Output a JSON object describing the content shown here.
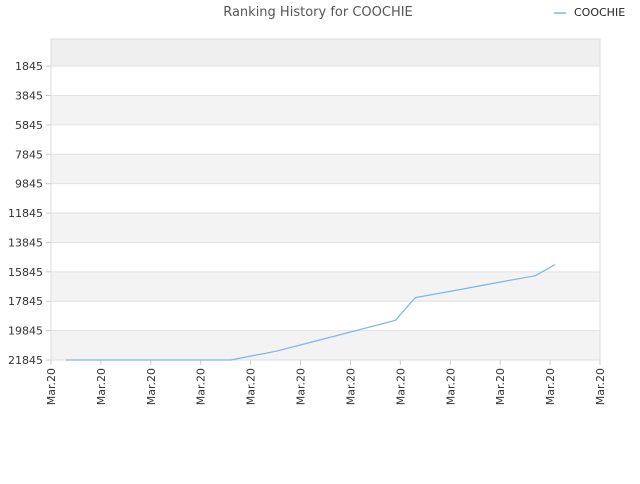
{
  "chart_data": {
    "type": "line",
    "title": "Ranking History for COOCHIE",
    "xlabel": "",
    "ylabel": "",
    "y_inverted": true,
    "ylim": [
      0,
      21845
    ],
    "yticks": [
      1845,
      3845,
      5845,
      7845,
      9845,
      11845,
      13845,
      15845,
      17845,
      19845,
      21845
    ],
    "xtick_labels": [
      "Mar.20",
      "Mar.20",
      "Mar.20",
      "Mar.20",
      "Mar.20",
      "Mar.20",
      "Mar.20",
      "Mar.20",
      "Mar.20",
      "Mar.20",
      "Mar.20",
      "Mar.20"
    ],
    "grid": true,
    "alternating_bands": true,
    "legend": {
      "position": "top-right"
    },
    "series": [
      {
        "name": "COOCHIE",
        "color": "#7cb5ec",
        "x": [
          0.3,
          1.2,
          2.1,
          3.0,
          3.6,
          4.5,
          5.5,
          6.5,
          6.9,
          7.3,
          8.2,
          9.1,
          9.7,
          10.1
        ],
        "y": [
          21845,
          21845,
          21845,
          21845,
          21845,
          21255,
          20380,
          19505,
          19140,
          17600,
          17050,
          16475,
          16115,
          15350
        ]
      }
    ]
  }
}
